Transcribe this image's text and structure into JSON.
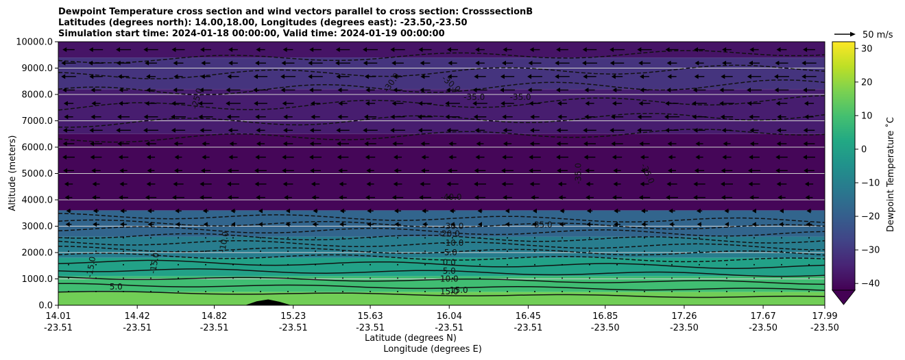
{
  "chart_data": {
    "type": "heatmap",
    "title_lines": [
      "Dewpoint Temperature cross section and wind vectors parallel to cross section: CrosssectionB",
      "Latitudes (degrees north): 14.00,18.00, Longitudes (degrees east): -23.50,-23.50",
      "Simulation start time: 2024-01-18 00:00:00, Valid time: 2024-01-19 00:00:00"
    ],
    "xlabel": "Latitude (degrees N)",
    "xlabel2": "Longitude (degrees E)",
    "ylabel": "Altitude (meters)",
    "x_ticks": [
      {
        "lat": "14.01",
        "lon": "-23.51"
      },
      {
        "lat": "14.42",
        "lon": "-23.51"
      },
      {
        "lat": "14.82",
        "lon": "-23.51"
      },
      {
        "lat": "15.23",
        "lon": "-23.51"
      },
      {
        "lat": "15.63",
        "lon": "-23.51"
      },
      {
        "lat": "16.04",
        "lon": "-23.51"
      },
      {
        "lat": "16.45",
        "lon": "-23.51"
      },
      {
        "lat": "16.85",
        "lon": "-23.50"
      },
      {
        "lat": "17.26",
        "lon": "-23.50"
      },
      {
        "lat": "17.67",
        "lon": "-23.50"
      },
      {
        "lat": "17.99",
        "lon": "-23.50"
      }
    ],
    "x_range": [
      14.01,
      17.99
    ],
    "y_ticks": [
      "0.0",
      "1000.0",
      "2000.0",
      "3000.0",
      "4000.0",
      "5000.0",
      "6000.0",
      "7000.0",
      "8000.0",
      "9000.0",
      "10000.0"
    ],
    "y_range": [
      0,
      10000
    ],
    "grid": "horizontal",
    "colorbar": {
      "label": "Dewpoint Temperature ˚C",
      "ticks": [
        "30",
        "20",
        "10",
        "0",
        "−10",
        "−20",
        "−30",
        "−40"
      ],
      "range": [
        -42,
        32
      ],
      "colors": [
        "#440154",
        "#482475",
        "#414487",
        "#355f8d",
        "#2a788e",
        "#21918c",
        "#22a884",
        "#44bf70",
        "#7ad151",
        "#bddf26",
        "#fde725"
      ]
    },
    "quiver_key": {
      "label": "50 m/s",
      "speed": 50
    },
    "wind_direction": "southward along section (arrows pointing left)",
    "contour_levels_labeled": [
      "-40.0",
      "-35.0",
      "-30.0",
      "-25.0",
      "-20.0",
      "-15.0",
      "-10.0",
      "-5.0",
      "0.0",
      "5.0",
      "10.0",
      "15.0"
    ],
    "contour_labels": [
      {
        "text": "-25.0",
        "lat": 14.73,
        "alt": 7850,
        "rot": -75
      },
      {
        "text": "-30.0",
        "lat": 15.74,
        "alt": 8450,
        "rot": -55
      },
      {
        "text": "-30.0",
        "lat": 16.05,
        "alt": 8400,
        "rot": 40
      },
      {
        "text": "-35.0",
        "lat": 16.17,
        "alt": 7900,
        "rot": 0
      },
      {
        "text": "-35.0",
        "lat": 16.41,
        "alt": 7900,
        "rot": 0
      },
      {
        "text": "-35.0",
        "lat": 16.71,
        "alt": 5000,
        "rot": -90
      },
      {
        "text": "-35.0",
        "lat": 17.07,
        "alt": 5000,
        "rot": 65
      },
      {
        "text": "-40.0",
        "lat": 16.05,
        "alt": 4100,
        "rot": 0
      },
      {
        "text": "-30.0",
        "lat": 16.06,
        "alt": 3000,
        "rot": 0
      },
      {
        "text": "-35.0",
        "lat": 16.52,
        "alt": 3050,
        "rot": 0
      },
      {
        "text": "-20.0",
        "lat": 16.04,
        "alt": 2720,
        "rot": 0
      },
      {
        "text": "-10.0",
        "lat": 16.06,
        "alt": 2360,
        "rot": 0
      },
      {
        "text": "-10.0",
        "lat": 14.87,
        "alt": 2400,
        "rot": -80
      },
      {
        "text": "-5.0",
        "lat": 16.04,
        "alt": 2000,
        "rot": 0
      },
      {
        "text": "-15.0",
        "lat": 14.51,
        "alt": 1600,
        "rot": -80
      },
      {
        "text": "-15.0",
        "lat": 14.18,
        "alt": 1450,
        "rot": -80
      },
      {
        "text": "0.0",
        "lat": 16.04,
        "alt": 1620,
        "rot": 0
      },
      {
        "text": "5.0",
        "lat": 16.04,
        "alt": 1300,
        "rot": 0
      },
      {
        "text": "10.0",
        "lat": 16.04,
        "alt": 1000,
        "rot": 0
      },
      {
        "text": "15.0",
        "lat": 16.04,
        "alt": 520,
        "rot": 0
      },
      {
        "text": "15.0",
        "lat": 16.09,
        "alt": 570,
        "rot": 0
      },
      {
        "text": "5.0",
        "lat": 14.31,
        "alt": 700,
        "rot": 0
      }
    ],
    "layers": [
      {
        "top": 10000,
        "bottom": 9400,
        "temp": -38
      },
      {
        "top": 9400,
        "bottom": 8200,
        "temp": -31
      },
      {
        "top": 8200,
        "bottom": 6500,
        "temp": -36
      },
      {
        "top": 6500,
        "bottom": 3600,
        "temp": -41
      },
      {
        "top": 3600,
        "bottom": 2600,
        "temp": -18
      },
      {
        "top": 2600,
        "bottom": 1800,
        "temp": -11
      },
      {
        "top": 1800,
        "bottom": 1100,
        "temp": 0
      },
      {
        "top": 1100,
        "bottom": 500,
        "temp": 9
      },
      {
        "top": 500,
        "bottom": 0,
        "temp": 16
      }
    ],
    "terrain": [
      {
        "lat": 14.98,
        "alt": 0
      },
      {
        "lat": 15.04,
        "alt": 150
      },
      {
        "lat": 15.1,
        "alt": 220
      },
      {
        "lat": 15.16,
        "alt": 130
      },
      {
        "lat": 15.22,
        "alt": 0
      }
    ]
  }
}
